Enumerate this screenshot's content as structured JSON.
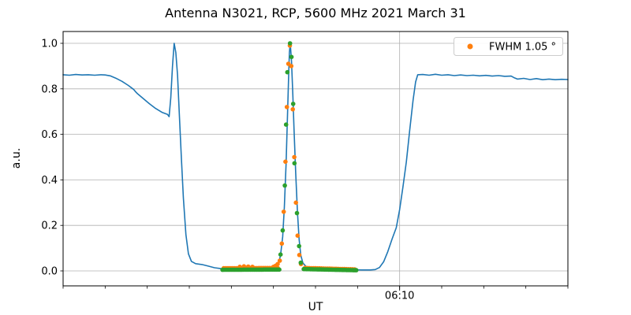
{
  "title": "Antenna N3021, RCP, 5600 MHz 2021 March 31",
  "colors": {
    "signal_line": "#1f77b4",
    "data_dots": "#ff7f0e",
    "fit_dots": "#2ca02c",
    "grid": "#b0b0b0",
    "spine": "#000000",
    "legend_border": "#cccccc",
    "background": "#ffffff"
  },
  "chart_data": {
    "type": "line",
    "title": "Antenna N3021, RCP, 5600 MHz 2021 March 31",
    "xlabel": "UT",
    "ylabel": "a.u.",
    "x_unit": "minutes after 06:00 UT",
    "xlim": [
      2,
      14
    ],
    "ylim": [
      -0.066,
      1.052
    ],
    "grid": true,
    "legend": {
      "position": "upper right",
      "entries": [
        {
          "label": "FWHM 1.05 °",
          "series": "data_dots",
          "marker": "dot"
        }
      ]
    },
    "x_minor_ticks": [
      2,
      3,
      4,
      5,
      6,
      7,
      8,
      9,
      10,
      11,
      12,
      13,
      14
    ],
    "x_major_ticks": [
      {
        "t": 10,
        "label": "06:10"
      }
    ],
    "y_ticks": [
      {
        "v": 0.0,
        "label": "0.0"
      },
      {
        "v": 0.2,
        "label": "0.2"
      },
      {
        "v": 0.4,
        "label": "0.4"
      },
      {
        "v": 0.6,
        "label": "0.6"
      },
      {
        "v": 0.8,
        "label": "0.8"
      },
      {
        "v": 1.0,
        "label": "1.0"
      }
    ],
    "series": [
      {
        "name": "signal",
        "type": "line",
        "color": "#1f77b4",
        "width": 1.6,
        "points": [
          [
            2.0,
            0.862
          ],
          [
            2.15,
            0.86
          ],
          [
            2.3,
            0.863
          ],
          [
            2.45,
            0.861
          ],
          [
            2.6,
            0.862
          ],
          [
            2.75,
            0.86
          ],
          [
            2.9,
            0.862
          ],
          [
            3.0,
            0.861
          ],
          [
            3.12,
            0.857
          ],
          [
            3.25,
            0.847
          ],
          [
            3.4,
            0.833
          ],
          [
            3.55,
            0.815
          ],
          [
            3.68,
            0.797
          ],
          [
            3.72,
            0.788
          ],
          [
            3.76,
            0.78
          ],
          [
            3.9,
            0.758
          ],
          [
            4.05,
            0.735
          ],
          [
            4.2,
            0.714
          ],
          [
            4.35,
            0.697
          ],
          [
            4.48,
            0.688
          ],
          [
            4.52,
            0.678
          ],
          [
            4.56,
            0.76
          ],
          [
            4.6,
            0.9
          ],
          [
            4.64,
            1.0
          ],
          [
            4.68,
            0.96
          ],
          [
            4.72,
            0.86
          ],
          [
            4.76,
            0.7
          ],
          [
            4.81,
            0.5
          ],
          [
            4.86,
            0.32
          ],
          [
            4.92,
            0.16
          ],
          [
            4.98,
            0.075
          ],
          [
            5.05,
            0.042
          ],
          [
            5.15,
            0.032
          ],
          [
            5.3,
            0.028
          ],
          [
            5.45,
            0.021
          ],
          [
            5.6,
            0.014
          ],
          [
            5.75,
            0.01
          ],
          [
            5.95,
            0.007
          ],
          [
            6.15,
            0.008
          ],
          [
            6.35,
            0.006
          ],
          [
            6.55,
            0.008
          ],
          [
            6.75,
            0.008
          ],
          [
            6.95,
            0.011
          ],
          [
            7.05,
            0.016
          ],
          [
            7.12,
            0.03
          ],
          [
            7.17,
            0.07
          ],
          [
            7.22,
            0.15
          ],
          [
            7.26,
            0.28
          ],
          [
            7.3,
            0.47
          ],
          [
            7.33,
            0.66
          ],
          [
            7.36,
            0.85
          ],
          [
            7.38,
            0.96
          ],
          [
            7.4,
            1.0
          ],
          [
            7.43,
            0.92
          ],
          [
            7.46,
            0.78
          ],
          [
            7.49,
            0.62
          ],
          [
            7.53,
            0.43
          ],
          [
            7.57,
            0.26
          ],
          [
            7.61,
            0.14
          ],
          [
            7.65,
            0.07
          ],
          [
            7.7,
            0.035
          ],
          [
            7.78,
            0.018
          ],
          [
            7.9,
            0.013
          ],
          [
            8.1,
            0.01
          ],
          [
            8.3,
            0.009
          ],
          [
            8.5,
            0.007
          ],
          [
            8.7,
            0.006
          ],
          [
            8.9,
            0.005
          ],
          [
            9.1,
            0.004
          ],
          [
            9.3,
            0.004
          ],
          [
            9.42,
            0.006
          ],
          [
            9.52,
            0.015
          ],
          [
            9.62,
            0.04
          ],
          [
            9.72,
            0.085
          ],
          [
            9.82,
            0.14
          ],
          [
            9.92,
            0.19
          ],
          [
            10.0,
            0.27
          ],
          [
            10.08,
            0.37
          ],
          [
            10.16,
            0.48
          ],
          [
            10.24,
            0.62
          ],
          [
            10.32,
            0.75
          ],
          [
            10.38,
            0.83
          ],
          [
            10.43,
            0.862
          ],
          [
            10.55,
            0.863
          ],
          [
            10.7,
            0.86
          ],
          [
            10.85,
            0.864
          ],
          [
            11.0,
            0.86
          ],
          [
            11.15,
            0.862
          ],
          [
            11.3,
            0.858
          ],
          [
            11.45,
            0.861
          ],
          [
            11.6,
            0.858
          ],
          [
            11.75,
            0.86
          ],
          [
            11.9,
            0.857
          ],
          [
            12.05,
            0.859
          ],
          [
            12.2,
            0.856
          ],
          [
            12.35,
            0.858
          ],
          [
            12.5,
            0.855
          ],
          [
            12.65,
            0.856
          ],
          [
            12.73,
            0.848
          ],
          [
            12.8,
            0.843
          ],
          [
            12.95,
            0.846
          ],
          [
            13.1,
            0.841
          ],
          [
            13.25,
            0.845
          ],
          [
            13.4,
            0.84
          ],
          [
            13.55,
            0.843
          ],
          [
            13.7,
            0.84
          ],
          [
            13.85,
            0.842
          ],
          [
            14.0,
            0.841
          ]
        ]
      },
      {
        "name": "data_dots",
        "type": "scatter",
        "color": "#ff7f0e",
        "radius": 2.8,
        "points": [
          [
            6.2,
            0.018
          ],
          [
            6.3,
            0.02
          ],
          [
            6.4,
            0.019
          ],
          [
            6.5,
            0.018
          ],
          [
            7.0,
            0.018
          ],
          [
            7.05,
            0.022
          ],
          [
            7.1,
            0.03
          ],
          [
            7.15,
            0.045
          ],
          [
            7.2,
            0.12
          ],
          [
            7.245,
            0.26
          ],
          [
            7.285,
            0.48
          ],
          [
            7.32,
            0.72
          ],
          [
            7.355,
            0.91
          ],
          [
            7.39,
            0.99
          ],
          [
            7.425,
            0.9
          ],
          [
            7.46,
            0.71
          ],
          [
            7.495,
            0.5
          ],
          [
            7.535,
            0.3
          ],
          [
            7.575,
            0.155
          ],
          [
            7.615,
            0.07
          ],
          [
            7.655,
            0.03
          ]
        ],
        "bands": [
          {
            "t_start": 5.82,
            "t_end": 7.1,
            "v_start": 0.012,
            "v_end": 0.013,
            "step": 0.05
          },
          {
            "t_start": 7.75,
            "t_end": 8.93,
            "v_start": 0.013,
            "v_end": 0.007,
            "step": 0.05
          }
        ]
      },
      {
        "name": "fit_dots",
        "type": "scatter",
        "color": "#2ca02c",
        "radius": 2.8,
        "points": [
          [
            7.17,
            0.072
          ],
          [
            7.22,
            0.178
          ],
          [
            7.27,
            0.375
          ],
          [
            7.3,
            0.643
          ],
          [
            7.33,
            0.873
          ],
          [
            7.395,
            1.0
          ],
          [
            7.43,
            0.94
          ],
          [
            7.47,
            0.734
          ],
          [
            7.5,
            0.473
          ],
          [
            7.56,
            0.254
          ],
          [
            7.61,
            0.109
          ],
          [
            7.65,
            0.036
          ]
        ],
        "bands": [
          {
            "t_start": 5.79,
            "t_end": 7.14,
            "v_start": 0.005,
            "v_end": 0.006,
            "step": 0.033
          },
          {
            "t_start": 7.72,
            "t_end": 8.97,
            "v_start": 0.008,
            "v_end": 0.003,
            "step": 0.033
          }
        ]
      }
    ]
  }
}
